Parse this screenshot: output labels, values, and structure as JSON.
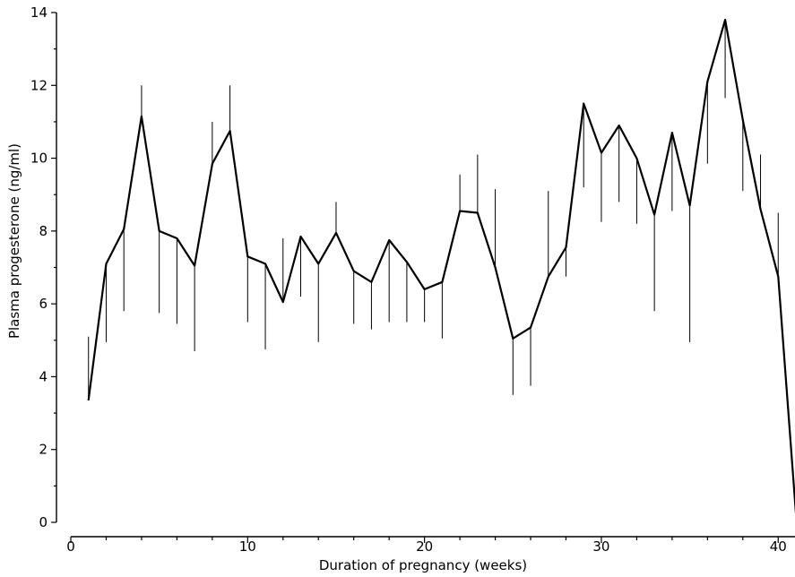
{
  "chart_data": {
    "type": "line",
    "title": "",
    "xlabel": "Duration of pregnancy (weeks)",
    "ylabel": "Plasma progesterone (ng/ml)",
    "xlim": [
      0,
      41
    ],
    "ylim": [
      0,
      14
    ],
    "xticks": [
      0,
      10,
      20,
      30,
      40
    ],
    "yticks": [
      0,
      2,
      4,
      6,
      8,
      10,
      12,
      14
    ],
    "grid": false,
    "series": [
      {
        "x": [
          1,
          2,
          3,
          4,
          5,
          6,
          7,
          8,
          9,
          10,
          11,
          12,
          13,
          14,
          15,
          16,
          17,
          18,
          19,
          20,
          21,
          22,
          23,
          24,
          25,
          26,
          27,
          28,
          29,
          30,
          31,
          32,
          33,
          34,
          35,
          36,
          37,
          38,
          39,
          40,
          41
        ],
        "values": [
          3.35,
          7.1,
          8.05,
          11.15,
          8.0,
          7.8,
          7.05,
          9.85,
          10.75,
          7.3,
          7.1,
          6.05,
          7.85,
          7.1,
          7.95,
          6.9,
          6.6,
          7.75,
          7.15,
          6.4,
          6.6,
          8.55,
          8.5,
          7.0,
          5.05,
          5.35,
          6.75,
          7.55,
          11.5,
          10.15,
          10.9,
          10.0,
          8.45,
          10.7,
          8.7,
          12.1,
          13.8,
          11.05,
          8.6,
          6.75,
          0.25
        ],
        "error_upper": [
          5.1,
          7.1,
          8.05,
          12.0,
          8.0,
          7.8,
          7.05,
          11.0,
          12.0,
          7.3,
          7.1,
          7.8,
          7.85,
          7.1,
          8.8,
          6.9,
          6.6,
          7.75,
          7.15,
          6.4,
          6.6,
          9.55,
          10.1,
          9.15,
          5.05,
          5.35,
          9.1,
          7.55,
          11.5,
          10.15,
          10.9,
          10.0,
          8.45,
          10.7,
          8.7,
          12.1,
          13.8,
          11.05,
          10.1,
          8.5,
          0.25
        ],
        "error_lower": [
          3.35,
          4.95,
          5.8,
          11.15,
          5.75,
          5.45,
          4.7,
          9.85,
          10.75,
          5.5,
          4.75,
          6.05,
          6.2,
          4.95,
          7.95,
          5.45,
          5.3,
          5.5,
          5.5,
          5.5,
          5.05,
          8.55,
          8.5,
          7.0,
          3.5,
          3.75,
          6.75,
          6.75,
          9.2,
          8.25,
          8.8,
          8.2,
          5.8,
          8.55,
          4.95,
          9.85,
          11.65,
          9.1,
          8.6,
          6.75,
          0.25
        ]
      }
    ]
  }
}
